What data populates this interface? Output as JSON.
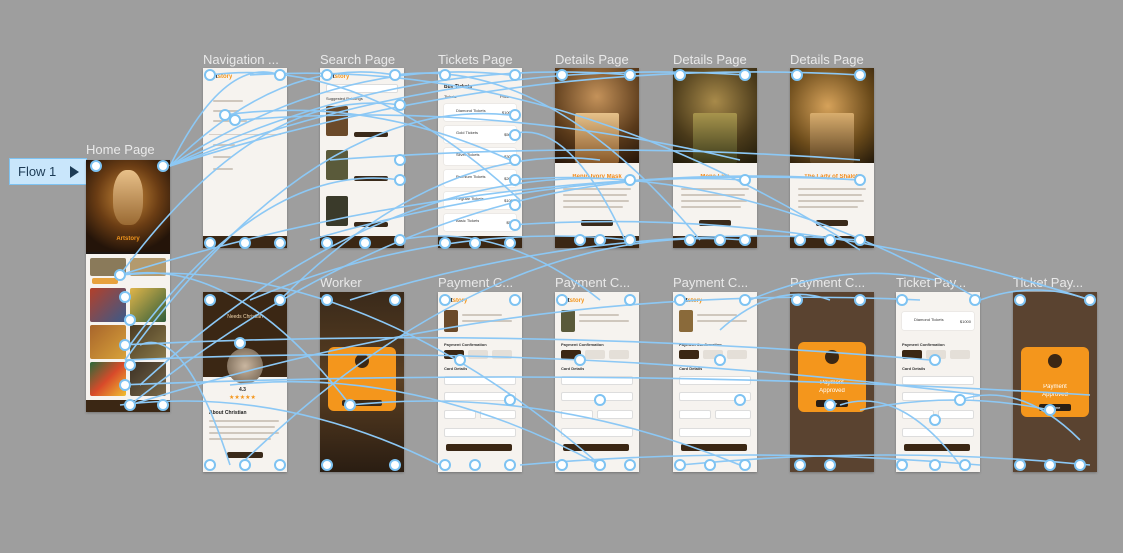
{
  "flow": {
    "label": "Flow 1"
  },
  "frames": {
    "home": "Home Page",
    "navigation": "Navigation ...",
    "search": "Search Page",
    "tickets": "Tickets Page",
    "details1": "Details Page",
    "details2": "Details Page",
    "details3": "Details Page",
    "worker": "Worker",
    "pay1": "Payment C...",
    "pay2": "Payment C...",
    "pay3": "Payment C...",
    "pay4": "Payment C...",
    "ticketpay1": "Ticket Pay...",
    "ticketpay2": "Ticket Pay..."
  },
  "app": {
    "brand_a": "Art",
    "brand_b": "story",
    "home_title": "Artstory",
    "buy_ticket": "Buy Tickets",
    "suggested": "Suggested Paintings",
    "tickets_header": "Buy Tickets",
    "tickets_col_a": "Tickets",
    "tickets_col_b": "Price",
    "ticket_types": [
      {
        "name": "Diamond Tickets",
        "price": "$1000"
      },
      {
        "name": "Gold Tickets",
        "price": "$500"
      },
      {
        "name": "Silver Tickets",
        "price": "$300"
      },
      {
        "name": "Premium Tickets",
        "price": "$200"
      },
      {
        "name": "Regular Tickets",
        "price": "$100"
      },
      {
        "name": "Basic Tickets",
        "price": "$50"
      }
    ],
    "detail_titles": [
      "Benin Ivory Mask",
      "Mona Lisa",
      "The Lady of Shalott"
    ],
    "worker_name": "Needs Christian",
    "about": "About Christian",
    "rating": "4.3",
    "payment_confirmation": "Payment Confirmation",
    "card_details": "Card Details",
    "payment_approved_1": "Payment",
    "payment_approved_2": "Approved",
    "home_btn": "Home",
    "diamond_ticket": "Diamond Tickets",
    "diamond_price": "$1000"
  }
}
